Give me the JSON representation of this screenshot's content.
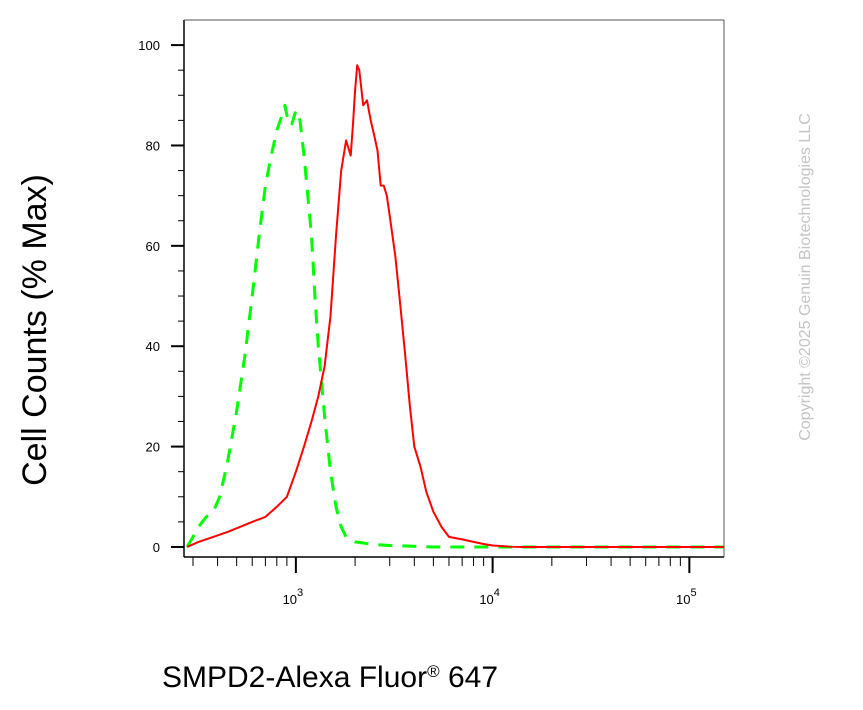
{
  "chart_data": {
    "type": "line",
    "xlabel": "SMPD2-Alexa Fluor",
    "xlabel_mark": "®",
    "xlabel_suffix": " 647",
    "ylabel": "Cell Counts (% Max)",
    "x_scale": "log",
    "xlim": [
      270,
      150000
    ],
    "ylim": [
      -2,
      105
    ],
    "y_ticks": [
      "0",
      "20",
      "40",
      "60",
      "80",
      "100"
    ],
    "x_tick_labels": [
      {
        "base": "10",
        "exp": "3"
      },
      {
        "base": "10",
        "exp": "4"
      },
      {
        "base": "10",
        "exp": "5"
      }
    ],
    "grid": false,
    "series": [
      {
        "color": "#ff0000",
        "style": "solid",
        "x": [
          280,
          320,
          380,
          450,
          520,
          600,
          700,
          800,
          900,
          1000,
          1100,
          1200,
          1300,
          1400,
          1500,
          1600,
          1700,
          1800,
          1900,
          1950,
          2000,
          2050,
          2100,
          2200,
          2300,
          2400,
          2500,
          2600,
          2700,
          2800,
          2900,
          3000,
          3200,
          3400,
          3600,
          3800,
          4000,
          4300,
          4600,
          5000,
          5500,
          6000,
          7000,
          8000,
          9000,
          10000,
          11000,
          12000,
          14000,
          20000,
          50000,
          100000,
          150000
        ],
        "y": [
          0,
          1,
          2,
          3,
          4,
          5,
          6,
          8,
          10,
          15,
          20,
          25,
          30,
          36,
          46,
          62,
          75,
          81,
          78,
          84,
          91,
          96,
          95,
          88,
          89,
          85,
          82,
          79,
          72,
          72,
          70,
          66,
          58,
          48,
          38,
          28,
          20,
          16,
          11,
          7,
          4,
          2,
          1.5,
          1,
          0.6,
          0.3,
          0.2,
          0.1,
          0,
          0,
          0,
          0,
          0
        ]
      },
      {
        "color": "#00ff00",
        "style": "dashed",
        "x": [
          280,
          300,
          320,
          350,
          380,
          410,
          450,
          500,
          550,
          600,
          650,
          700,
          750,
          800,
          850,
          880,
          900,
          950,
          1000,
          1050,
          1100,
          1150,
          1200,
          1250,
          1300,
          1400,
          1500,
          1600,
          1700,
          1800,
          2000,
          2500,
          3000,
          5000,
          10000,
          150000
        ],
        "y": [
          0,
          2,
          4,
          6,
          7,
          10,
          17,
          27,
          38,
          50,
          62,
          72,
          78,
          83,
          86,
          88,
          86,
          84,
          87,
          85,
          78,
          70,
          62,
          50,
          40,
          26,
          15,
          8,
          4,
          2,
          1,
          0.5,
          0.3,
          0,
          0,
          0
        ]
      }
    ]
  },
  "copyright": "Copyright ©2025 Genuin Biotechnologies LLC"
}
